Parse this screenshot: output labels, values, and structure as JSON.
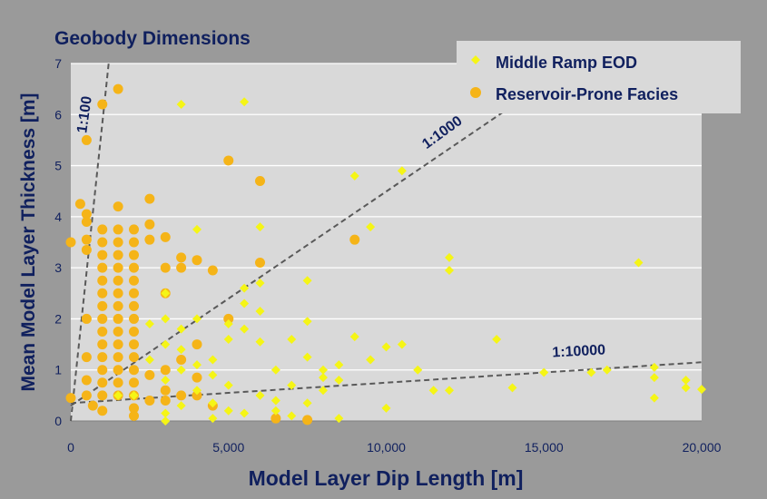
{
  "chart_data": {
    "type": "scatter",
    "title": "Geobody Dimensions",
    "xlabel": "Model Layer Dip Length [m]",
    "ylabel": "Mean Model Layer Thickness [m]",
    "xlim": [
      0,
      20000
    ],
    "ylim": [
      0,
      7
    ],
    "x_ticks": [
      0,
      5000,
      10000,
      15000,
      20000
    ],
    "x_tick_labels": [
      "0",
      "5,000",
      "10,000",
      "15,000",
      "20,000"
    ],
    "y_ticks": [
      0,
      1,
      2,
      3,
      4,
      5,
      6,
      7
    ],
    "y_tick_labels": [
      "0",
      "1",
      "2",
      "3",
      "4",
      "5",
      "6",
      "7"
    ],
    "grid": "horizontal",
    "legend_position": "top-right",
    "colors": {
      "background": "#9a9a9a",
      "plot_area": "#d9d9d9",
      "gridline": "#ffffff",
      "text": "#10205e",
      "reference_line": "#595959"
    },
    "reference_lines": [
      {
        "label": "1:100",
        "x": [
          0,
          1200
        ],
        "y": [
          0,
          7
        ]
      },
      {
        "label": "1:1000",
        "x": [
          0,
          15500
        ],
        "y": [
          0.3,
          6.8
        ]
      },
      {
        "label": "1:10000",
        "x": [
          0,
          20000
        ],
        "y": [
          0.35,
          1.15
        ]
      }
    ],
    "series": [
      {
        "name": "Middle Ramp EOD",
        "marker": "diamond",
        "color": "#f5f516",
        "points": [
          [
            3500,
            6.2
          ],
          [
            5500,
            6.25
          ],
          [
            9000,
            4.8
          ],
          [
            10500,
            4.9
          ],
          [
            9500,
            3.8
          ],
          [
            6000,
            3.8
          ],
          [
            4000,
            3.75
          ],
          [
            12000,
            3.2
          ],
          [
            12000,
            2.95
          ],
          [
            7500,
            2.75
          ],
          [
            18000,
            3.1
          ],
          [
            13500,
            1.6
          ],
          [
            10500,
            1.5
          ],
          [
            10000,
            1.45
          ],
          [
            11000,
            1.0
          ],
          [
            15000,
            0.95
          ],
          [
            16500,
            0.95
          ],
          [
            17000,
            1.0
          ],
          [
            18500,
            1.05
          ],
          [
            18500,
            0.85
          ],
          [
            19500,
            0.8
          ],
          [
            19500,
            0.65
          ],
          [
            20000,
            0.62
          ],
          [
            18500,
            0.45
          ],
          [
            14000,
            0.65
          ],
          [
            11500,
            0.6
          ],
          [
            12000,
            0.6
          ],
          [
            10000,
            0.25
          ],
          [
            9000,
            1.65
          ],
          [
            8500,
            1.1
          ],
          [
            8500,
            0.8
          ],
          [
            8000,
            1.0
          ],
          [
            7000,
            1.6
          ],
          [
            7500,
            1.95
          ],
          [
            6000,
            1.55
          ],
          [
            6000,
            2.15
          ],
          [
            6000,
            2.7
          ],
          [
            5500,
            2.3
          ],
          [
            5500,
            2.6
          ],
          [
            5500,
            1.8
          ],
          [
            5000,
            1.9
          ],
          [
            5000,
            1.6
          ],
          [
            4500,
            1.2
          ],
          [
            4500,
            0.9
          ],
          [
            3500,
            1.4
          ],
          [
            3000,
            0.0
          ],
          [
            4500,
            0.05
          ],
          [
            8500,
            0.05
          ],
          [
            3000,
            2.5
          ],
          [
            3000,
            2.0
          ],
          [
            2500,
            1.9
          ],
          [
            2500,
            1.2
          ],
          [
            4000,
            2.0
          ],
          [
            4000,
            1.1
          ],
          [
            2000,
            0.5
          ],
          [
            3500,
            0.3
          ],
          [
            5000,
            0.2
          ],
          [
            5500,
            0.15
          ],
          [
            6500,
            0.2
          ],
          [
            7000,
            0.1
          ],
          [
            7500,
            0.35
          ],
          [
            8000,
            0.6
          ],
          [
            9500,
            1.2
          ],
          [
            6500,
            1.0
          ],
          [
            6000,
            0.5
          ],
          [
            5000,
            0.7
          ],
          [
            4000,
            0.6
          ],
          [
            3000,
            0.8
          ],
          [
            3000,
            1.5
          ],
          [
            3500,
            1.0
          ],
          [
            3500,
            1.8
          ],
          [
            7000,
            0.7
          ],
          [
            6500,
            0.4
          ],
          [
            4500,
            0.35
          ],
          [
            3000,
            0.15
          ],
          [
            1500,
            0.5
          ],
          [
            7500,
            1.25
          ],
          [
            8000,
            0.85
          ]
        ]
      },
      {
        "name": "Reservoir-Prone Facies",
        "marker": "circle",
        "color": "#f5b418",
        "points": [
          [
            1500,
            6.5
          ],
          [
            1000,
            6.2
          ],
          [
            500,
            5.5
          ],
          [
            5000,
            5.1
          ],
          [
            6000,
            4.7
          ],
          [
            9000,
            3.55
          ],
          [
            300,
            4.25
          ],
          [
            500,
            4.05
          ],
          [
            500,
            3.9
          ],
          [
            0,
            3.5
          ],
          [
            500,
            3.55
          ],
          [
            500,
            3.35
          ],
          [
            1500,
            4.2
          ],
          [
            2500,
            4.35
          ],
          [
            2500,
            3.85
          ],
          [
            2500,
            3.55
          ],
          [
            3000,
            3.6
          ],
          [
            3500,
            3.2
          ],
          [
            3500,
            3.0
          ],
          [
            4000,
            3.15
          ],
          [
            4500,
            2.95
          ],
          [
            6000,
            3.1
          ],
          [
            1000,
            3.75
          ],
          [
            1000,
            3.5
          ],
          [
            1000,
            3.25
          ],
          [
            1000,
            3.0
          ],
          [
            1000,
            2.75
          ],
          [
            1000,
            2.5
          ],
          [
            1000,
            2.25
          ],
          [
            1000,
            2.0
          ],
          [
            1000,
            1.75
          ],
          [
            1000,
            1.5
          ],
          [
            1000,
            1.25
          ],
          [
            1000,
            1.0
          ],
          [
            1000,
            0.75
          ],
          [
            1000,
            0.5
          ],
          [
            1500,
            3.75
          ],
          [
            1500,
            3.5
          ],
          [
            1500,
            3.25
          ],
          [
            1500,
            3.0
          ],
          [
            1500,
            2.75
          ],
          [
            1500,
            2.5
          ],
          [
            1500,
            2.25
          ],
          [
            1500,
            2.0
          ],
          [
            1500,
            1.75
          ],
          [
            1500,
            1.5
          ],
          [
            1500,
            1.25
          ],
          [
            1500,
            1.0
          ],
          [
            1500,
            0.75
          ],
          [
            1500,
            0.5
          ],
          [
            2000,
            3.75
          ],
          [
            2000,
            3.5
          ],
          [
            2000,
            3.25
          ],
          [
            2000,
            3.0
          ],
          [
            2000,
            2.75
          ],
          [
            2000,
            2.5
          ],
          [
            2000,
            2.25
          ],
          [
            2000,
            2.0
          ],
          [
            2000,
            1.75
          ],
          [
            2000,
            1.5
          ],
          [
            2000,
            1.25
          ],
          [
            2000,
            1.0
          ],
          [
            2000,
            0.75
          ],
          [
            2000,
            0.5
          ],
          [
            2000,
            0.25
          ],
          [
            2000,
            0.1
          ],
          [
            500,
            2.0
          ],
          [
            500,
            1.25
          ],
          [
            500,
            0.8
          ],
          [
            500,
            0.5
          ],
          [
            700,
            0.3
          ],
          [
            1000,
            0.2
          ],
          [
            0,
            0.45
          ],
          [
            3000,
            3.0
          ],
          [
            3000,
            2.5
          ],
          [
            3000,
            1.0
          ],
          [
            3000,
            0.6
          ],
          [
            3000,
            0.4
          ],
          [
            2500,
            0.4
          ],
          [
            3500,
            0.5
          ],
          [
            4000,
            1.5
          ],
          [
            4000,
            0.85
          ],
          [
            4000,
            0.5
          ],
          [
            4500,
            0.3
          ],
          [
            5000,
            2.0
          ],
          [
            6500,
            0.05
          ],
          [
            7500,
            0.02
          ],
          [
            3500,
            1.2
          ],
          [
            2500,
            0.9
          ]
        ]
      }
    ]
  }
}
